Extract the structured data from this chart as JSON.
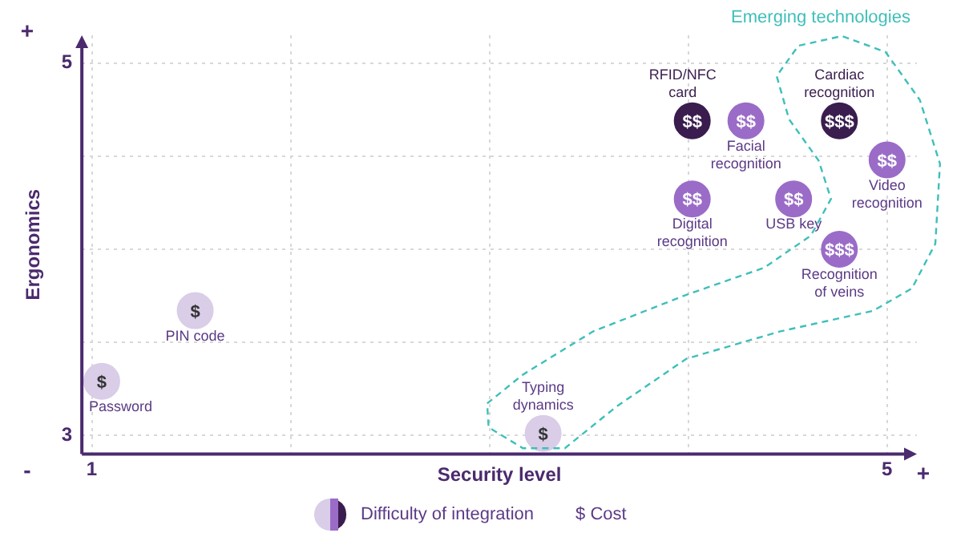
{
  "chart_data": {
    "type": "scatter",
    "xlabel": "Security level",
    "ylabel": "Ergonomics",
    "xlim": [
      0.95,
      5.15
    ],
    "ylim": [
      2.9,
      5.15
    ],
    "xticks": [
      1,
      {
        "value": 2,
        "label": null
      },
      {
        "value": 3,
        "label": null
      },
      {
        "value": 4,
        "label": null
      },
      5
    ],
    "yticks": [
      3,
      {
        "value": 3.5,
        "label": null
      },
      {
        "value": 4,
        "label": null
      },
      {
        "value": 4.5,
        "label": null
      },
      5
    ],
    "grid": true,
    "marker": "circle",
    "series": [
      {
        "name": "Password",
        "color": "#d9cde8",
        "x": [
          1.05
        ],
        "values": [
          3.29
        ],
        "value_labels": [
          "$"
        ]
      },
      {
        "name": "PIN code",
        "color": "#d9cde8",
        "x": [
          1.52
        ],
        "values": [
          3.67
        ],
        "value_labels": [
          "$"
        ]
      },
      {
        "name": "Typing dynamics",
        "color": "#d9cde8",
        "x": [
          3.27
        ],
        "values": [
          3.01
        ],
        "value_labels": [
          "$"
        ]
      },
      {
        "name": "RFID/NFC card",
        "color": "#3a1d4e",
        "x": [
          4.02
        ],
        "values": [
          4.69
        ],
        "value_labels": [
          "$$"
        ]
      },
      {
        "name": "Facial recognition",
        "color": "#9a6cc8",
        "x": [
          4.29
        ],
        "values": [
          4.69
        ],
        "value_labels": [
          "$$"
        ]
      },
      {
        "name": "Cardiac recognition",
        "color": "#3a1d4e",
        "x": [
          4.76
        ],
        "values": [
          4.69
        ],
        "value_labels": [
          "$$$"
        ]
      },
      {
        "name": "Video recognition",
        "color": "#9a6cc8",
        "x": [
          5.0
        ],
        "values": [
          4.48
        ],
        "value_labels": [
          "$$"
        ]
      },
      {
        "name": "Digital recognition",
        "color": "#9a6cc8",
        "x": [
          4.02
        ],
        "values": [
          4.27
        ],
        "value_labels": [
          "$$"
        ]
      },
      {
        "name": "USB key",
        "color": "#9a6cc8",
        "x": [
          4.53
        ],
        "values": [
          4.27
        ],
        "value_labels": [
          "$$"
        ]
      },
      {
        "name": "Recognition of veins",
        "color": "#9a6cc8",
        "x": [
          4.76
        ],
        "values": [
          4.0
        ],
        "value_labels": [
          "$$$"
        ]
      }
    ],
    "annotations": [
      "Emerging technologies",
      "-",
      "+",
      "+",
      "Difficulty of integration",
      "$ Cost"
    ]
  }
}
